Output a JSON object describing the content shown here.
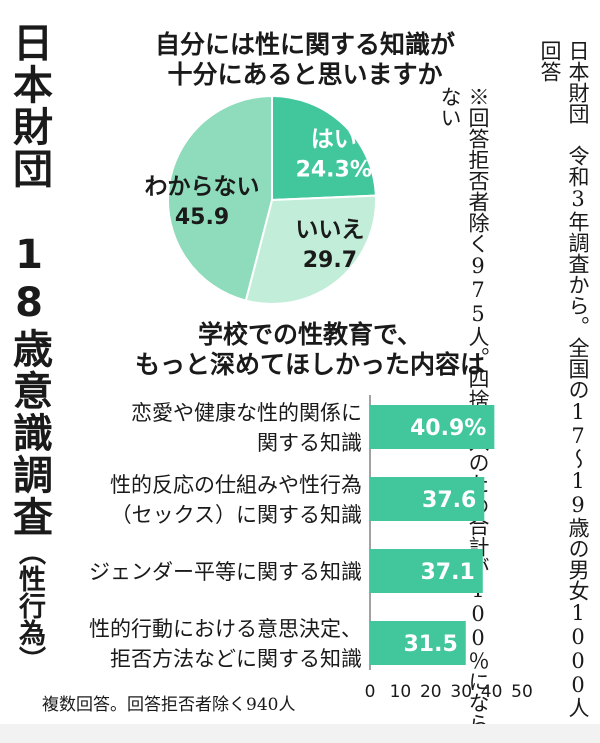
{
  "side_title": {
    "main": "日本財団　18歳意識調査",
    "sub": "（性行為）"
  },
  "source": "日本財団　令和3年調査から。全国の17〜19歳の男女1000人回答",
  "pie_note": "※回答拒否者除く975人。四捨五入のため合計が100％にならない",
  "footnote": "複数回答。回答拒否者除く940人",
  "colors": {
    "dark_green": "#41c79b",
    "light_green": "#c2edd9",
    "mid_green": "#8fdcbc",
    "text_on_dark": "#ffffff"
  },
  "chart_data": [
    {
      "type": "pie",
      "title": "自分には性に関する知識が\n十分にあると思いますか",
      "slices": [
        {
          "label": "はい",
          "value": 24.3,
          "value_text": "24.3%",
          "color": "#41c79b",
          "text_color": "#ffffff"
        },
        {
          "label": "いいえ",
          "value": 29.7,
          "value_text": "29.7",
          "color": "#c2edd9",
          "text_color": "#1a1a1a"
        },
        {
          "label": "わからない",
          "value": 45.9,
          "value_text": "45.9",
          "color": "#8fdcbc",
          "text_color": "#1a1a1a"
        }
      ]
    },
    {
      "type": "bar",
      "orientation": "horizontal",
      "title": "学校での性教育で、\nもっと深めてほしかった内容は",
      "categories": [
        "恋愛や健康な性的関係に\n関する知識",
        "性的反応の仕組みや性行為\n（セックス）に関する知識",
        "ジェンダー平等に関する知識",
        "性的行動における意思決定、\n拒否方法などに関する知識"
      ],
      "values": [
        40.9,
        37.6,
        37.1,
        31.5
      ],
      "value_labels": [
        "40.9%",
        "37.6",
        "37.1",
        "31.5"
      ],
      "xlim": [
        0,
        50
      ],
      "xticks": [
        "0",
        "10",
        "20",
        "30",
        "40",
        "50"
      ],
      "bar_color": "#41c79b"
    }
  ]
}
